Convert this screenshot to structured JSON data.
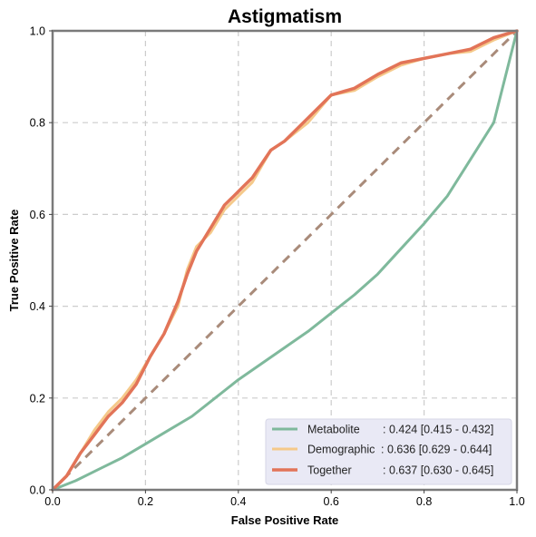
{
  "chart_data": {
    "type": "line",
    "title": "Astigmatism",
    "xlabel": "False Positive Rate",
    "ylabel": "True Positive Rate",
    "xlim": [
      0,
      1
    ],
    "ylim": [
      0,
      1
    ],
    "xticks": [
      "0.0",
      "0.2",
      "0.4",
      "0.6",
      "0.8",
      "1.0"
    ],
    "yticks": [
      "0.0",
      "0.2",
      "0.4",
      "0.6",
      "0.8",
      "1.0"
    ],
    "grid": true,
    "legend_position": "bottom-right",
    "diagonal": {
      "x": [
        0,
        1
      ],
      "y": [
        0,
        1
      ],
      "color": "#a98b7a",
      "style": "dashed"
    },
    "series": [
      {
        "name": "Metabolite",
        "auc_label": ": 0.424 [0.415 - 0.432]",
        "color": "#7fb99c",
        "x": [
          0,
          0.05,
          0.1,
          0.15,
          0.2,
          0.25,
          0.3,
          0.35,
          0.4,
          0.45,
          0.5,
          0.55,
          0.6,
          0.65,
          0.7,
          0.75,
          0.8,
          0.85,
          0.9,
          0.95,
          1.0
        ],
        "y": [
          0,
          0.02,
          0.045,
          0.07,
          0.1,
          0.13,
          0.16,
          0.2,
          0.24,
          0.275,
          0.31,
          0.345,
          0.385,
          0.425,
          0.47,
          0.525,
          0.58,
          0.64,
          0.72,
          0.8,
          1.0
        ]
      },
      {
        "name": "Demographic",
        "auc_label": ": 0.636 [0.629 - 0.644]",
        "color": "#f5c98a",
        "x": [
          0,
          0.03,
          0.06,
          0.09,
          0.12,
          0.15,
          0.18,
          0.21,
          0.24,
          0.27,
          0.29,
          0.31,
          0.34,
          0.37,
          0.39,
          0.41,
          0.43,
          0.47,
          0.5,
          0.55,
          0.6,
          0.65,
          0.7,
          0.75,
          0.8,
          0.85,
          0.9,
          0.95,
          1.0
        ],
        "y": [
          0,
          0.03,
          0.08,
          0.13,
          0.17,
          0.2,
          0.24,
          0.29,
          0.34,
          0.4,
          0.48,
          0.53,
          0.56,
          0.61,
          0.63,
          0.65,
          0.67,
          0.74,
          0.76,
          0.8,
          0.86,
          0.87,
          0.9,
          0.925,
          0.94,
          0.95,
          0.955,
          0.98,
          1.0
        ]
      },
      {
        "name": "Together",
        "auc_label": ": 0.637 [0.630 - 0.645]",
        "color": "#e27458",
        "x": [
          0,
          0.03,
          0.06,
          0.09,
          0.12,
          0.15,
          0.18,
          0.21,
          0.24,
          0.27,
          0.29,
          0.31,
          0.34,
          0.37,
          0.39,
          0.41,
          0.43,
          0.47,
          0.5,
          0.55,
          0.6,
          0.65,
          0.7,
          0.75,
          0.8,
          0.85,
          0.9,
          0.95,
          1.0
        ],
        "y": [
          0,
          0.03,
          0.08,
          0.12,
          0.16,
          0.19,
          0.23,
          0.29,
          0.34,
          0.41,
          0.47,
          0.52,
          0.57,
          0.62,
          0.64,
          0.66,
          0.68,
          0.74,
          0.76,
          0.81,
          0.86,
          0.875,
          0.905,
          0.93,
          0.94,
          0.95,
          0.96,
          0.985,
          1.0
        ]
      }
    ]
  }
}
